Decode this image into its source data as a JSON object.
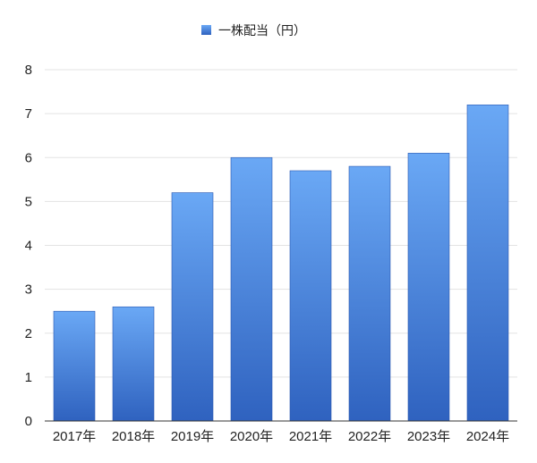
{
  "chart_data": {
    "type": "bar",
    "categories": [
      "2017年",
      "2018年",
      "2019年",
      "2020年",
      "2021年",
      "2022年",
      "2023年",
      "2024年"
    ],
    "series": [
      {
        "name": "一株配当（円）",
        "values": [
          2.5,
          2.6,
          5.2,
          6.0,
          5.7,
          5.8,
          6.1,
          7.2
        ]
      }
    ],
    "title": "",
    "xlabel": "",
    "ylabel": "",
    "ylim": [
      0,
      8
    ],
    "yticks": [
      "0",
      "1",
      "2",
      "3",
      "4",
      "5",
      "6",
      "7",
      "8"
    ],
    "grid": true,
    "legend_position": "top-center",
    "colors": {
      "bar_top": "#6aa8f5",
      "bar_bottom": "#2f62bf",
      "bar_stroke": "#2a58b0",
      "grid": "#e3e3e3",
      "axis": "#333333"
    }
  }
}
